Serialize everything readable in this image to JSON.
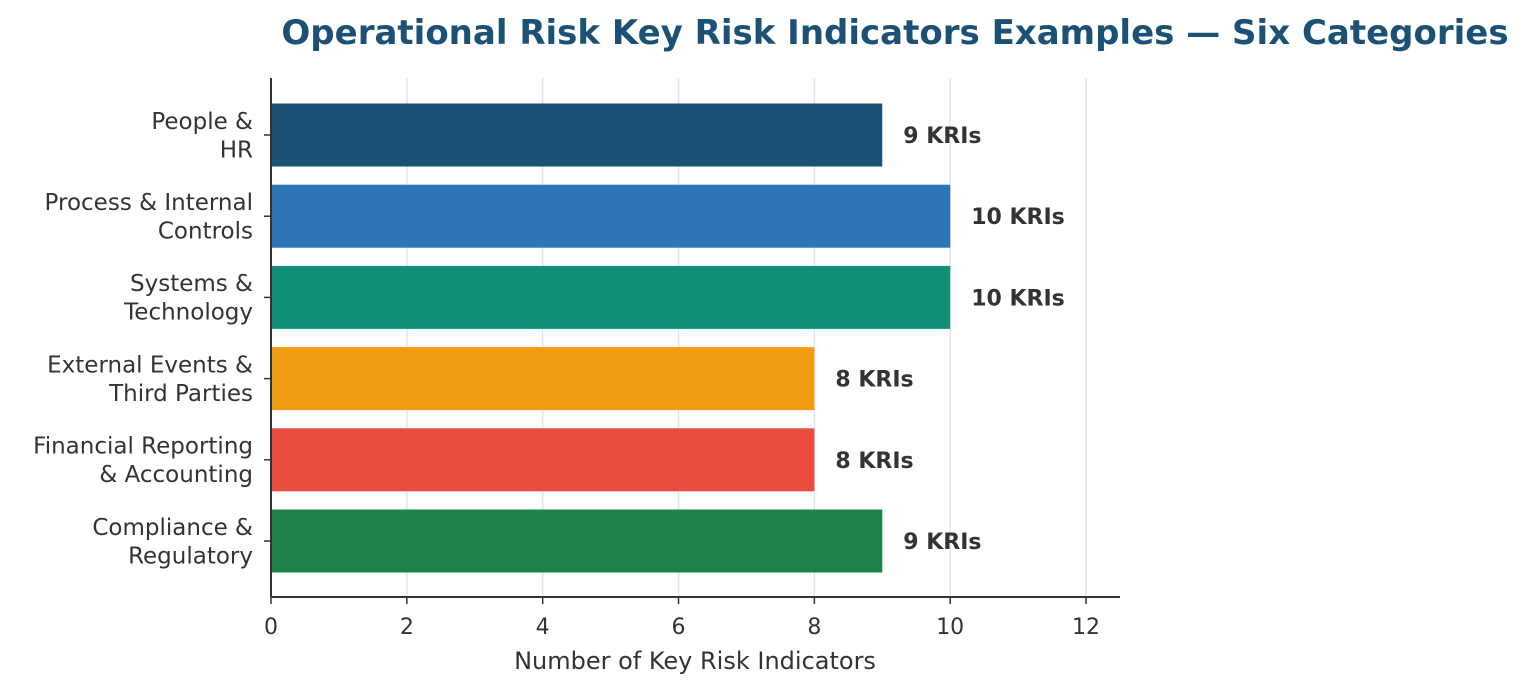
{
  "chart_data": {
    "type": "bar",
    "orientation": "horizontal",
    "title": "Operational Risk Key Risk Indicators Examples — Six Categories",
    "xlabel": "Number of Key Risk Indicators",
    "ylabel": "",
    "xlim": [
      0,
      12.5
    ],
    "xticks": [
      0,
      2,
      4,
      6,
      8,
      10,
      12
    ],
    "grid": "vertical",
    "categories": [
      [
        "People &",
        "HR"
      ],
      [
        "Process & Internal",
        "Controls"
      ],
      [
        "Systems &",
        "Technology"
      ],
      [
        "External Events &",
        "Third Parties"
      ],
      [
        "Financial Reporting",
        "& Accounting"
      ],
      [
        "Compliance &",
        "Regulatory"
      ]
    ],
    "values": [
      9,
      10,
      10,
      8,
      8,
      9
    ],
    "data_labels": [
      "9 KRIs",
      "10 KRIs",
      "10 KRIs",
      "8 KRIs",
      "8 KRIs",
      "9 KRIs"
    ],
    "colors": [
      "#1c5176",
      "#2e75b6",
      "#138f76",
      "#f39c12",
      "#e74c3c",
      "#1f844a"
    ]
  }
}
